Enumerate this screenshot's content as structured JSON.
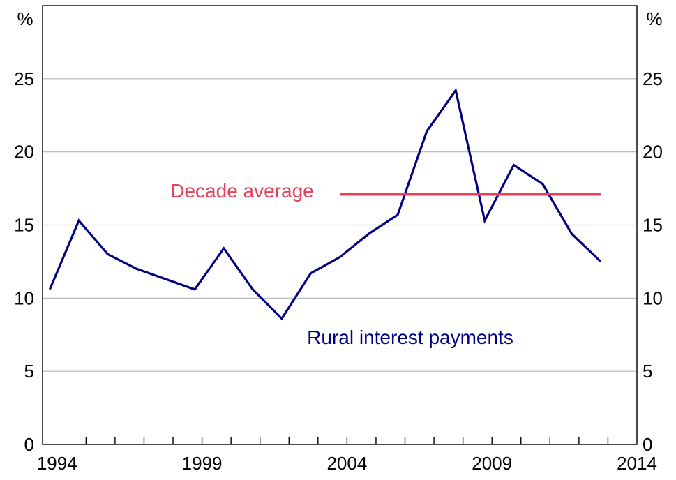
{
  "chart_data": {
    "type": "line",
    "unit_left": "%",
    "unit_right": "%",
    "xlim": [
      1993.5,
      2014
    ],
    "ylim": [
      0,
      30
    ],
    "y_ticks": [
      0,
      5,
      10,
      15,
      20,
      25
    ],
    "x_tick_labels": [
      1994,
      1999,
      2004,
      2009,
      2014
    ],
    "x_minor_ticks": [
      1995,
      1996,
      1997,
      1998,
      1999,
      2000,
      2001,
      2002,
      2003,
      2004,
      2005,
      2006,
      2007,
      2008,
      2009,
      2010,
      2011,
      2012,
      2013
    ],
    "grid": true,
    "series": [
      {
        "name": "Rural interest payments",
        "color": "#000080",
        "x": [
          1993.75,
          1994.75,
          1995.75,
          1996.75,
          1997.75,
          1998.75,
          1999.75,
          2000.75,
          2001.75,
          2002.75,
          2003.75,
          2004.75,
          2005.75,
          2006.75,
          2007.75,
          2008.75,
          2009.75,
          2010.75,
          2011.75,
          2012.75
        ],
        "values": [
          10.6,
          15.3,
          13.0,
          12.0,
          11.3,
          10.6,
          13.4,
          10.6,
          8.6,
          11.7,
          12.8,
          14.4,
          15.7,
          21.4,
          24.2,
          15.3,
          19.1,
          17.8,
          14.4,
          12.5
        ]
      },
      {
        "name": "Decade average",
        "color": "#e8405a",
        "x": [
          2003.75,
          2012.75
        ],
        "values": [
          17.1,
          17.1
        ]
      }
    ],
    "annotations": {
      "decade_average": "Decade average",
      "rural_interest": "Rural interest payments"
    }
  }
}
